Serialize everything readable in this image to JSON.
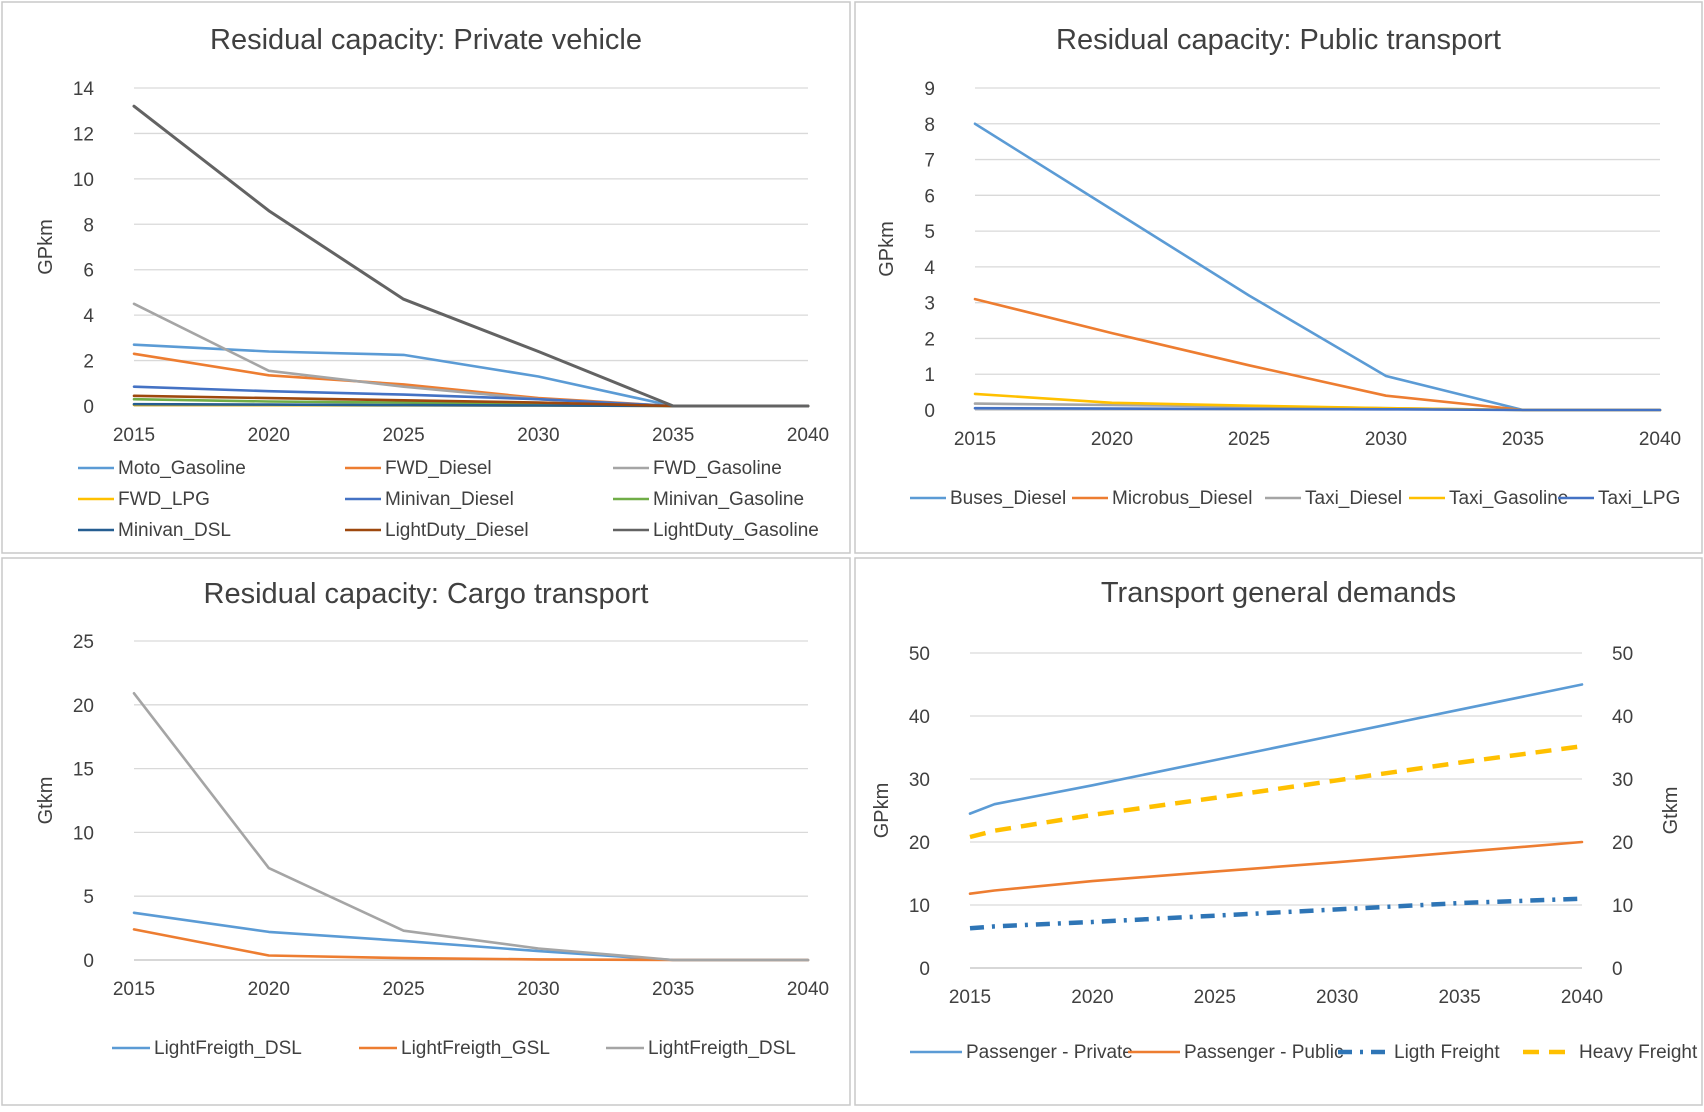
{
  "chart_data": [
    {
      "type": "line",
      "title": "Residual capacity: Private vehicle",
      "xlabel": "",
      "ylabel": "GPkm",
      "ylim": [
        0,
        14
      ],
      "yticks": [
        "0",
        "2",
        "4",
        "6",
        "8",
        "10",
        "12",
        "14"
      ],
      "categories": [
        "2015",
        "2020",
        "2025",
        "2030",
        "2035",
        "2040"
      ],
      "grid": true,
      "legend_position": "bottom",
      "x": [
        2015,
        2020,
        2025,
        2030,
        2035,
        2040
      ],
      "series": [
        {
          "name": "Moto_Gasoline",
          "color": "#5B9BD5",
          "dash": "solid",
          "values": [
            2.7,
            2.4,
            2.25,
            1.3,
            0,
            0
          ]
        },
        {
          "name": "FWD_Diesel",
          "color": "#ED7D31",
          "dash": "solid",
          "values": [
            2.3,
            1.35,
            0.95,
            0.35,
            0,
            0
          ]
        },
        {
          "name": "FWD_Gasoline",
          "color": "#A5A5A5",
          "dash": "solid",
          "values": [
            4.5,
            1.55,
            0.85,
            0.3,
            0,
            0
          ]
        },
        {
          "name": "FWD_LPG",
          "color": "#FFC000",
          "dash": "solid",
          "values": [
            0.05,
            0.04,
            0.03,
            0.02,
            0,
            0
          ]
        },
        {
          "name": "Minivan_Diesel",
          "color": "#4472C4",
          "dash": "solid",
          "values": [
            0.85,
            0.65,
            0.5,
            0.3,
            0,
            0
          ]
        },
        {
          "name": "Minivan_Gasoline",
          "color": "#70AD47",
          "dash": "solid",
          "values": [
            0.3,
            0.2,
            0.15,
            0.08,
            0,
            0
          ]
        },
        {
          "name": "Minivan_DSL",
          "color": "#255E91",
          "dash": "solid",
          "values": [
            0.08,
            0.06,
            0.04,
            0.02,
            0,
            0
          ]
        },
        {
          "name": "LightDuty_Diesel",
          "color": "#9E480E",
          "dash": "solid",
          "values": [
            0.45,
            0.35,
            0.25,
            0.15,
            0,
            0
          ]
        },
        {
          "name": "LightDuty_Gasoline",
          "color": "#636363",
          "dash": "solid",
          "values": [
            13.2,
            8.6,
            4.7,
            2.4,
            0,
            0
          ]
        }
      ]
    },
    {
      "type": "line",
      "title": "Residual capacity: Public transport",
      "xlabel": "",
      "ylabel": "GPkm",
      "ylim": [
        0,
        9
      ],
      "yticks": [
        "0",
        "1",
        "2",
        "3",
        "4",
        "5",
        "6",
        "7",
        "8",
        "9"
      ],
      "categories": [
        "2015",
        "2020",
        "2025",
        "2030",
        "2035",
        "2040"
      ],
      "grid": true,
      "legend_position": "bottom",
      "x": [
        2015,
        2020,
        2025,
        2030,
        2035,
        2040
      ],
      "series": [
        {
          "name": "Buses_Diesel",
          "color": "#5B9BD5",
          "dash": "solid",
          "values": [
            8.0,
            5.6,
            3.2,
            0.95,
            0,
            0
          ]
        },
        {
          "name": "Microbus_Diesel",
          "color": "#ED7D31",
          "dash": "solid",
          "values": [
            3.1,
            2.15,
            1.25,
            0.4,
            0,
            0
          ]
        },
        {
          "name": "Taxi_Diesel",
          "color": "#A5A5A5",
          "dash": "solid",
          "values": [
            0.18,
            0.14,
            0.1,
            0.05,
            0,
            0
          ]
        },
        {
          "name": "Taxi_Gasoline",
          "color": "#FFC000",
          "dash": "solid",
          "values": [
            0.45,
            0.2,
            0.12,
            0.05,
            0,
            0
          ]
        },
        {
          "name": "Taxi_LPG",
          "color": "#4472C4",
          "dash": "solid",
          "values": [
            0.05,
            0.04,
            0.03,
            0.02,
            0,
            0
          ]
        }
      ]
    },
    {
      "type": "line",
      "title": "Residual capacity: Cargo transport",
      "xlabel": "",
      "ylabel": "Gtkm",
      "ylim": [
        0,
        25
      ],
      "yticks": [
        "0",
        "5",
        "10",
        "15",
        "20",
        "25"
      ],
      "categories": [
        "2015",
        "2020",
        "2025",
        "2030",
        "2035",
        "2040"
      ],
      "grid": true,
      "legend_position": "bottom",
      "x": [
        2015,
        2020,
        2025,
        2030,
        2035,
        2040
      ],
      "series": [
        {
          "name": "LightFreigth_DSL",
          "color": "#5B9BD5",
          "dash": "solid",
          "values": [
            3.7,
            2.2,
            1.5,
            0.7,
            0,
            0
          ]
        },
        {
          "name": "LightFreigth_GSL",
          "color": "#ED7D31",
          "dash": "solid",
          "values": [
            2.4,
            0.35,
            0.15,
            0.05,
            0,
            0
          ]
        },
        {
          "name": "LightFreigth_DSL",
          "color": "#A5A5A5",
          "dash": "solid",
          "values": [
            20.9,
            7.2,
            2.3,
            0.9,
            0,
            0
          ]
        }
      ]
    },
    {
      "type": "line",
      "title": "Transport general demands",
      "xlabel": "",
      "ylabel": "GPkm",
      "ylabel_right": "Gtkm",
      "ylim": [
        0,
        50
      ],
      "ylim_right": [
        0,
        50
      ],
      "yticks": [
        "0",
        "10",
        "20",
        "30",
        "40",
        "50"
      ],
      "yticks_right": [
        "0",
        "10",
        "20",
        "30",
        "40",
        "50"
      ],
      "categories": [
        "2015",
        "2020",
        "2025",
        "2030",
        "2035",
        "2040"
      ],
      "grid": true,
      "legend_position": "bottom",
      "x": [
        2015,
        2016,
        2020,
        2025,
        2030,
        2035,
        2040
      ],
      "series": [
        {
          "name": "Passenger - Private",
          "axis": "left",
          "color": "#5B9BD5",
          "dash": "solid",
          "values": [
            24.5,
            26.0,
            29.0,
            33.0,
            37.0,
            41.0,
            45.0
          ]
        },
        {
          "name": "Passenger - Public",
          "axis": "left",
          "color": "#ED7D31",
          "dash": "solid",
          "values": [
            11.8,
            12.3,
            13.8,
            15.3,
            16.8,
            18.4,
            20.0
          ]
        },
        {
          "name": "Ligth Freight",
          "axis": "right",
          "color": "#2E75B6",
          "dash": "dashdot",
          "values": [
            6.3,
            6.6,
            7.3,
            8.3,
            9.3,
            10.3,
            11.0
          ]
        },
        {
          "name": "Heavy Freight",
          "axis": "right",
          "color": "#FFC000",
          "dash": "dash",
          "values": [
            20.8,
            21.8,
            24.3,
            27.0,
            29.8,
            32.6,
            35.2
          ]
        }
      ]
    }
  ]
}
